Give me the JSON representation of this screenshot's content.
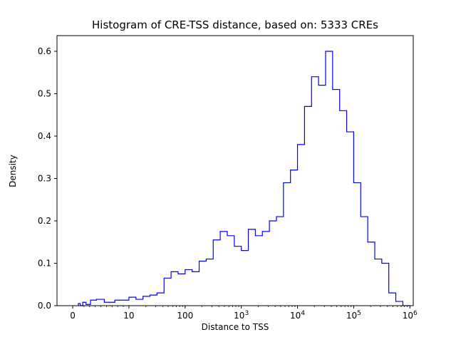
{
  "figure": {
    "title": "Histogram of CRE-TSS distance, based on: 5333 CREs",
    "xlabel": "Distance to TSS",
    "ylabel": "Density"
  },
  "chart_data": {
    "type": "bar",
    "subtype": "step-histogram-density",
    "title": "Histogram of CRE-TSS distance, based on: 5333 CREs",
    "xlabel": "Distance to TSS",
    "ylabel": "Density",
    "n_samples": 5333,
    "line_color": "#0000ff",
    "x_scale": "symlog",
    "x_linear_threshold": 10,
    "xlim_u": [
      -0.28,
      6.06
    ],
    "ylim": [
      0,
      0.637
    ],
    "yticks": [
      0.0,
      0.1,
      0.2,
      0.3,
      0.4,
      0.5,
      0.6
    ],
    "xticks": [
      {
        "label": "0",
        "u": 0
      },
      {
        "label": "10",
        "u": 1
      },
      {
        "label": "100",
        "u": 2
      },
      {
        "base": "10",
        "exp": "3",
        "u": 3
      },
      {
        "base": "10",
        "exp": "4",
        "u": 4
      },
      {
        "base": "10",
        "exp": "5",
        "u": 5
      },
      {
        "base": "10",
        "exp": "6",
        "u": 6
      }
    ],
    "bin_edges_log10": [
      0,
      0.125,
      0.25,
      0.375,
      0.5,
      0.625,
      0.75,
      0.875,
      1,
      1.125,
      1.25,
      1.375,
      1.5,
      1.625,
      1.75,
      1.875,
      2,
      2.125,
      2.25,
      2.375,
      2.5,
      2.625,
      2.75,
      2.875,
      3,
      3.125,
      3.25,
      3.375,
      3.5,
      3.625,
      3.75,
      3.875,
      4,
      4.125,
      4.25,
      4.375,
      4.5,
      4.625,
      4.75,
      4.875,
      5,
      5.125,
      5.25,
      5.375,
      5.5,
      5.625,
      5.75,
      5.875,
      6
    ],
    "densities": [
      0.005,
      0.0,
      0.008,
      0.003,
      0.013,
      0.015,
      0.008,
      0.013,
      0.02,
      0.015,
      0.022,
      0.025,
      0.03,
      0.065,
      0.08,
      0.075,
      0.085,
      0.08,
      0.105,
      0.11,
      0.155,
      0.175,
      0.165,
      0.14,
      0.13,
      0.18,
      0.165,
      0.175,
      0.2,
      0.21,
      0.29,
      0.32,
      0.38,
      0.47,
      0.54,
      0.52,
      0.6,
      0.51,
      0.46,
      0.41,
      0.29,
      0.21,
      0.15,
      0.11,
      0.1,
      0.03,
      0.01,
      0.0
    ]
  }
}
